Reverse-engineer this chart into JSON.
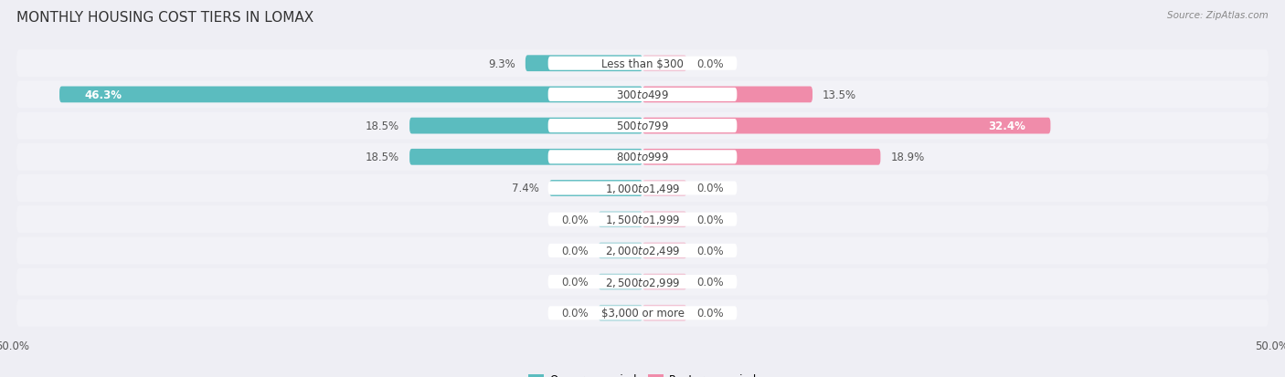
{
  "title": "MONTHLY HOUSING COST TIERS IN LOMAX",
  "source": "Source: ZipAtlas.com",
  "categories": [
    "Less than $300",
    "$300 to $499",
    "$500 to $799",
    "$800 to $999",
    "$1,000 to $1,499",
    "$1,500 to $1,999",
    "$2,000 to $2,499",
    "$2,500 to $2,999",
    "$3,000 or more"
  ],
  "owner_values": [
    9.3,
    46.3,
    18.5,
    18.5,
    7.4,
    0.0,
    0.0,
    0.0,
    0.0
  ],
  "renter_values": [
    0.0,
    13.5,
    32.4,
    18.9,
    0.0,
    0.0,
    0.0,
    0.0,
    0.0
  ],
  "owner_color": "#5bbcbf",
  "renter_color": "#f08caa",
  "bg_color": "#eeeef4",
  "row_bg_color": "#e2e2ea",
  "row_bg_light": "#f2f2f7",
  "xlim": 50.0,
  "bar_height": 0.52,
  "stub_size": 3.5,
  "title_fontsize": 11,
  "label_fontsize": 8.5,
  "cat_fontsize": 8.5,
  "axis_label_fontsize": 8.5
}
